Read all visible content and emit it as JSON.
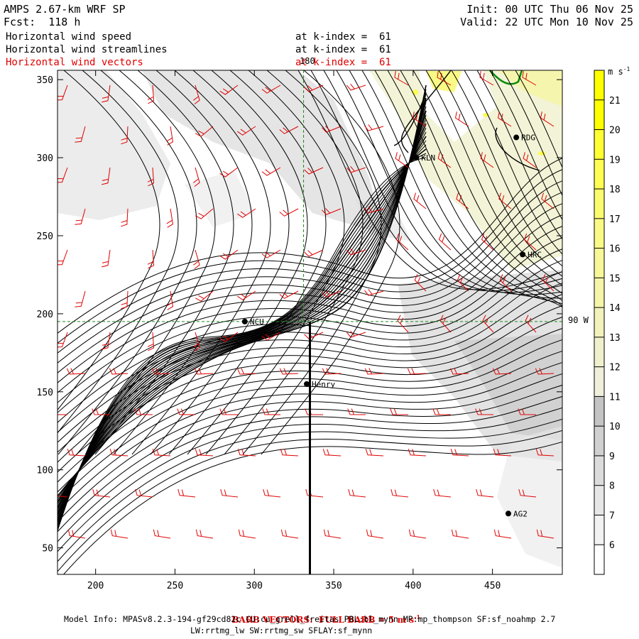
{
  "header": {
    "model": "AMPS 2.67-km WRF SP",
    "forecast": "Fcst:  118 h",
    "init": "Init: 00 UTC Thu 06 Nov 25",
    "valid": "Valid: 22 UTC Mon 10 Nov 25"
  },
  "fields": [
    {
      "name": "Horizontal wind speed",
      "level": "at k-index =  61",
      "color": "#000000"
    },
    {
      "name": "Horizontal wind streamlines",
      "level": "at k-index =  61",
      "color": "#000000"
    },
    {
      "name": "Horizontal wind vectors",
      "level": "at k-index =  61",
      "color": "#e00000"
    }
  ],
  "footer": {
    "barb_note": "BARB VECTORS:  FULL BARB = 5 m s",
    "barb_unit_sup": "-1",
    "model_info_line1": "Model Info: MPASv8.2.3-194-gf29cd82c CU:cu_grell_freitas PBL:bl_mynn MP:mp_thompson SF:sf_noahmp 2.7",
    "model_info_line2": "LW:rrtmg_lw SW:rrtmg_sw SFLAY:sf_mynn"
  },
  "chart_data": {
    "type": "heatmap",
    "x_ticks": [
      "200",
      "250",
      "300",
      "350",
      "400",
      "450"
    ],
    "x_tick_values": [
      200,
      250,
      300,
      350,
      400,
      450
    ],
    "y_ticks": [
      "50",
      "100",
      "150",
      "200",
      "250",
      "300",
      "350"
    ],
    "y_tick_values": [
      50,
      100,
      150,
      200,
      250,
      300,
      350
    ],
    "xlim": [
      176,
      494
    ],
    "ylim": [
      33,
      356
    ],
    "colorbar": {
      "unit": "m s",
      "unit_sup": "-1",
      "levels": [
        "6",
        "7",
        "8",
        "9",
        "10",
        "11",
        "12",
        "13",
        "14",
        "15",
        "16",
        "17",
        "18",
        "19",
        "20",
        "21"
      ],
      "colors": [
        "#ffffff",
        "#f2f2f2",
        "#e7e7e7",
        "#dcdcdc",
        "#d0d0d0",
        "#c4c4c4",
        "#efefdc",
        "#f0f0cd",
        "#f2f2bc",
        "#f5f5aa",
        "#f7f798",
        "#f9f986",
        "#fbfb6e",
        "#fdfd52",
        "#fefe32",
        "#ffff00",
        "#ffff00"
      ]
    },
    "grid_lines": {
      "lon_label_x": "180",
      "lat_label_y": "90 W",
      "x_value": 331,
      "y_value": 195
    },
    "cross_section": {
      "x": 335,
      "y_from": 195,
      "y_to": 33
    },
    "stations": [
      {
        "name": "KLN",
        "x": 402,
        "y": 300
      },
      {
        "name": "RDG",
        "x": 465,
        "y": 313
      },
      {
        "name": "HRC",
        "x": 469,
        "y": 238
      },
      {
        "name": "NCU",
        "x": 294,
        "y": 195
      },
      {
        "name": "Henry",
        "x": 333,
        "y": 155
      },
      {
        "name": "AG2",
        "x": 460,
        "y": 72
      }
    ]
  }
}
